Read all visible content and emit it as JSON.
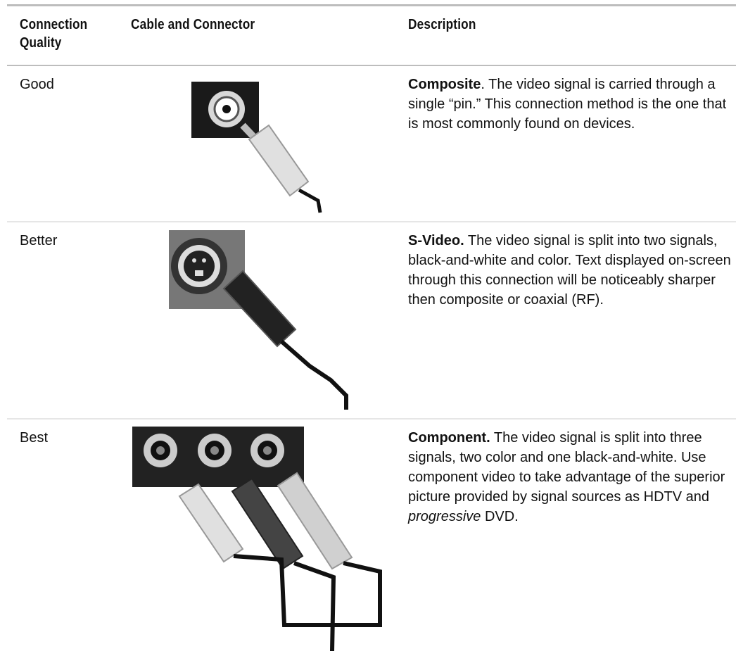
{
  "table": {
    "header": [
      "Connection Quality",
      "Cable and Connector",
      "Description"
    ],
    "rows": [
      {
        "quality": "Good",
        "description": [
          {
            "text": "Composite",
            "style": "bold"
          },
          {
            "text": ". The video signal is carried through a single “pin.” This connection method is the one that is most commonly found on devices.",
            "style": "regular"
          }
        ]
      },
      {
        "quality": "Better",
        "description": [
          {
            "text": "S-Video.",
            "style": "bold"
          },
          {
            "text": " The video signal is split into two signals, black-and-white and color. Text displayed on-screen through this connection will be noticeably sharper then composite or coaxial (RF).",
            "style": "regular"
          }
        ]
      },
      {
        "quality": "Best",
        "description": [
          {
            "text": "Component.",
            "style": "bold"
          },
          {
            "text": " The video signal is split into three signals, two color and one black-and-white. Use component video to take advantage of the superior picture provided by signal sources as HDTV and ",
            "style": "regular"
          },
          {
            "text": "progressive",
            "style": "italic"
          },
          {
            "text": " DVD.",
            "style": "regular"
          }
        ]
      }
    ]
  }
}
